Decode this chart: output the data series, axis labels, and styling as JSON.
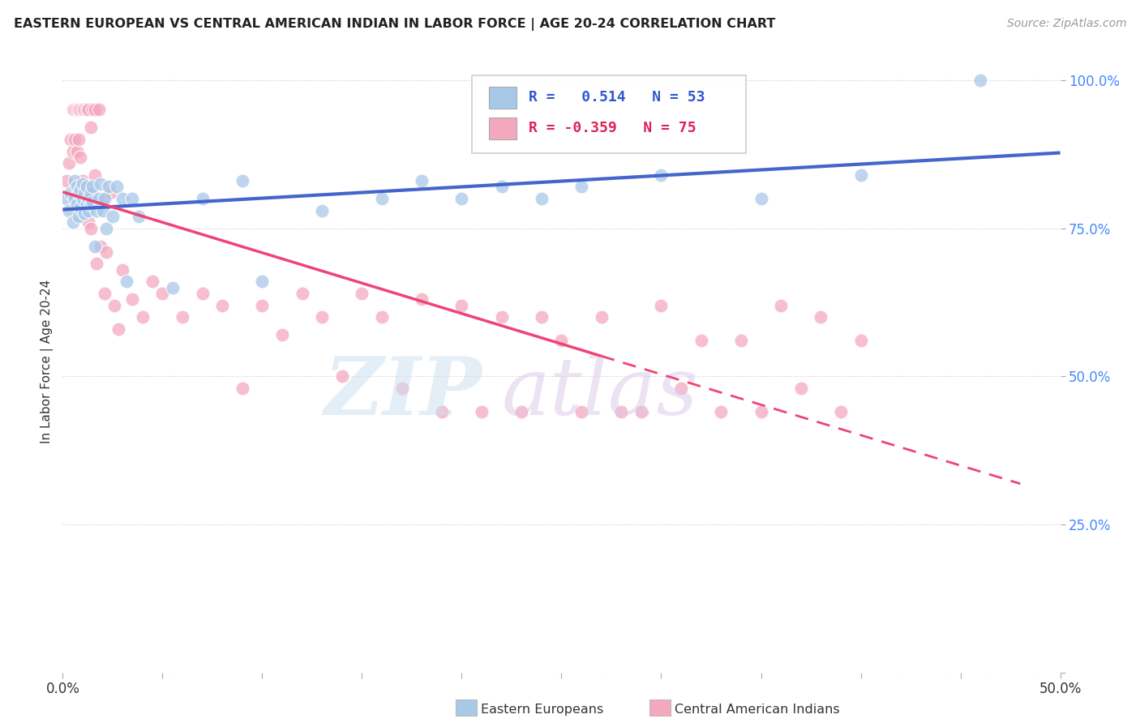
{
  "title": "EASTERN EUROPEAN VS CENTRAL AMERICAN INDIAN IN LABOR FORCE | AGE 20-24 CORRELATION CHART",
  "source": "Source: ZipAtlas.com",
  "ylabel": "In Labor Force | Age 20-24",
  "xlim": [
    0.0,
    0.5
  ],
  "ylim": [
    0.0,
    1.05
  ],
  "xticks": [
    0.0,
    0.05,
    0.1,
    0.15,
    0.2,
    0.25,
    0.3,
    0.35,
    0.4,
    0.45,
    0.5
  ],
  "xticklabels": [
    "0.0%",
    "",
    "",
    "",
    "",
    "",
    "",
    "",
    "",
    "",
    "50.0%"
  ],
  "ytick_positions": [
    0.0,
    0.25,
    0.5,
    0.75,
    1.0
  ],
  "ytick_labels": [
    "",
    "25.0%",
    "50.0%",
    "75.0%",
    "100.0%"
  ],
  "blue_R": 0.514,
  "blue_N": 53,
  "pink_R": -0.359,
  "pink_N": 75,
  "blue_color": "#a8c8e8",
  "pink_color": "#f4a8be",
  "blue_line_color": "#4466cc",
  "pink_line_color": "#ee4477",
  "background_color": "#ffffff",
  "grid_color": "#cccccc",
  "blue_scatter_x": [
    0.002,
    0.003,
    0.004,
    0.005,
    0.006,
    0.006,
    0.007,
    0.007,
    0.008,
    0.008,
    0.009,
    0.009,
    0.01,
    0.01,
    0.011,
    0.011,
    0.012,
    0.012,
    0.013,
    0.013,
    0.014,
    0.014,
    0.015,
    0.015,
    0.016,
    0.017,
    0.018,
    0.019,
    0.02,
    0.021,
    0.022,
    0.023,
    0.025,
    0.027,
    0.03,
    0.032,
    0.035,
    0.038,
    0.055,
    0.07,
    0.09,
    0.1,
    0.13,
    0.16,
    0.18,
    0.2,
    0.22,
    0.24,
    0.26,
    0.3,
    0.35,
    0.4,
    0.46
  ],
  "blue_scatter_y": [
    0.8,
    0.78,
    0.81,
    0.76,
    0.8,
    0.83,
    0.79,
    0.82,
    0.77,
    0.81,
    0.785,
    0.815,
    0.8,
    0.825,
    0.775,
    0.81,
    0.79,
    0.82,
    0.78,
    0.8,
    0.79,
    0.81,
    0.795,
    0.82,
    0.72,
    0.78,
    0.8,
    0.825,
    0.78,
    0.8,
    0.75,
    0.82,
    0.77,
    0.82,
    0.8,
    0.66,
    0.8,
    0.77,
    0.65,
    0.8,
    0.83,
    0.66,
    0.78,
    0.8,
    0.83,
    0.8,
    0.82,
    0.8,
    0.82,
    0.84,
    0.8,
    0.84,
    1.0
  ],
  "pink_scatter_x": [
    0.002,
    0.003,
    0.004,
    0.005,
    0.005,
    0.006,
    0.006,
    0.007,
    0.007,
    0.008,
    0.008,
    0.009,
    0.009,
    0.01,
    0.01,
    0.011,
    0.011,
    0.012,
    0.012,
    0.013,
    0.013,
    0.014,
    0.014,
    0.015,
    0.016,
    0.016,
    0.017,
    0.018,
    0.019,
    0.02,
    0.021,
    0.022,
    0.024,
    0.026,
    0.028,
    0.03,
    0.035,
    0.04,
    0.045,
    0.05,
    0.06,
    0.07,
    0.08,
    0.09,
    0.1,
    0.11,
    0.12,
    0.13,
    0.14,
    0.15,
    0.16,
    0.17,
    0.18,
    0.19,
    0.2,
    0.21,
    0.22,
    0.23,
    0.24,
    0.25,
    0.26,
    0.27,
    0.28,
    0.29,
    0.3,
    0.31,
    0.32,
    0.33,
    0.34,
    0.35,
    0.36,
    0.37,
    0.38,
    0.39,
    0.4
  ],
  "pink_scatter_y": [
    0.83,
    0.86,
    0.9,
    0.95,
    0.88,
    0.95,
    0.9,
    0.95,
    0.88,
    0.95,
    0.9,
    0.95,
    0.87,
    0.95,
    0.83,
    0.95,
    0.8,
    0.95,
    0.79,
    0.95,
    0.76,
    0.92,
    0.75,
    0.95,
    0.84,
    0.95,
    0.69,
    0.95,
    0.72,
    0.8,
    0.64,
    0.71,
    0.81,
    0.62,
    0.58,
    0.68,
    0.63,
    0.6,
    0.66,
    0.64,
    0.6,
    0.64,
    0.62,
    0.48,
    0.62,
    0.57,
    0.64,
    0.6,
    0.5,
    0.64,
    0.6,
    0.48,
    0.63,
    0.44,
    0.62,
    0.44,
    0.6,
    0.44,
    0.6,
    0.56,
    0.44,
    0.6,
    0.44,
    0.44,
    0.62,
    0.48,
    0.56,
    0.44,
    0.56,
    0.44,
    0.62,
    0.48,
    0.6,
    0.44,
    0.56
  ]
}
